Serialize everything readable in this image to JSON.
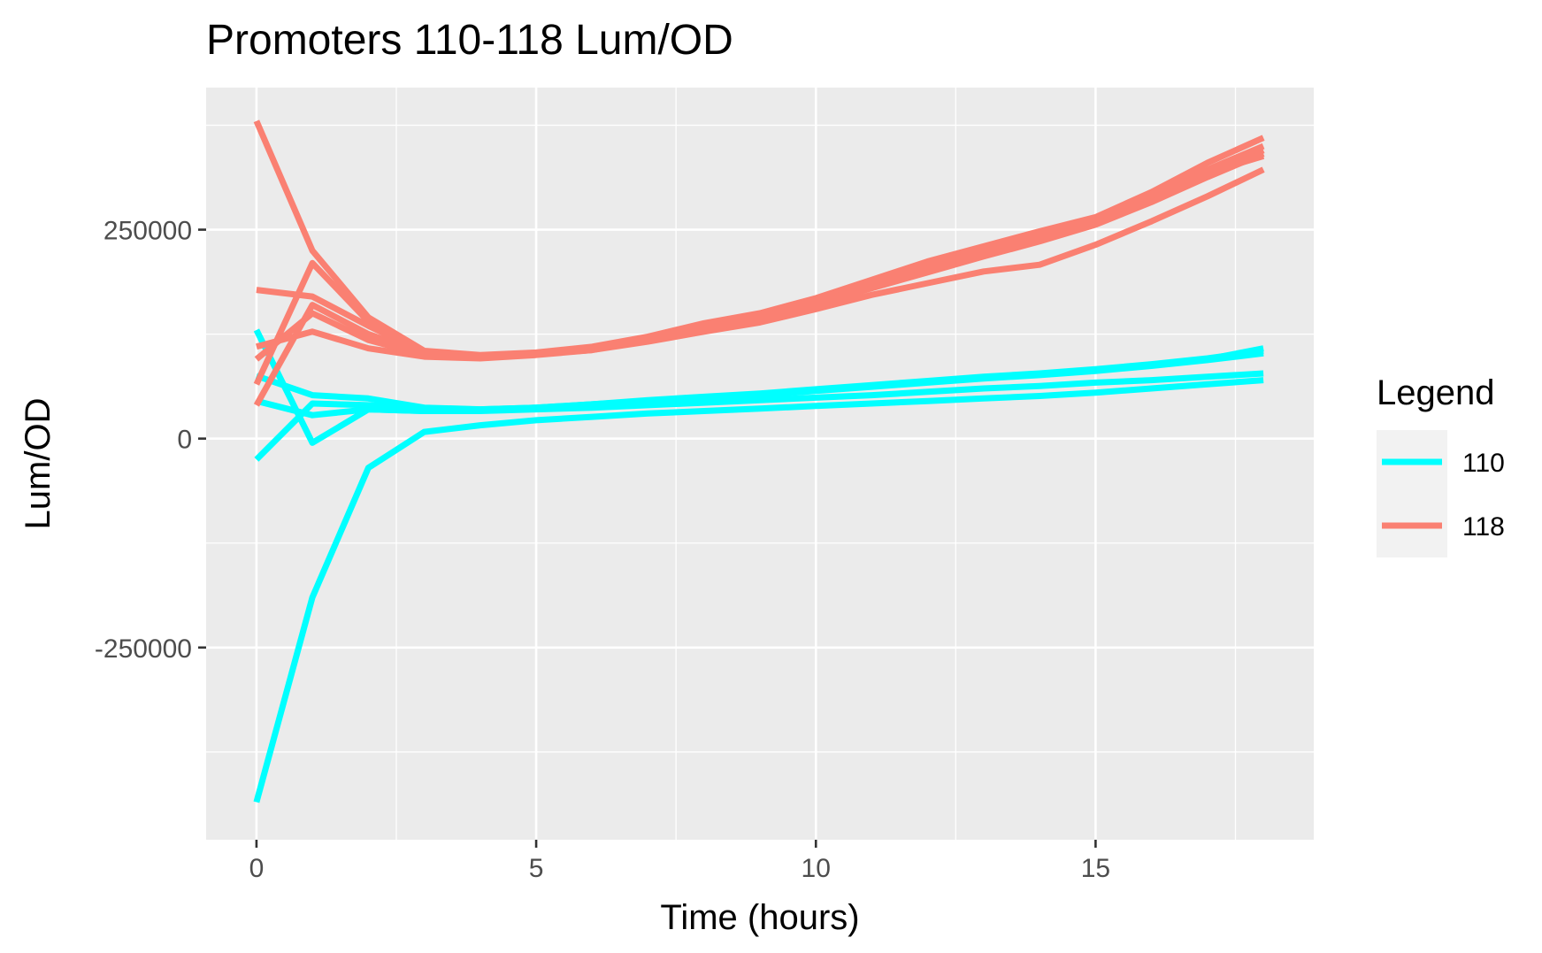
{
  "chart_data": {
    "type": "line",
    "title": "Promoters 110-118 Lum/OD",
    "xlabel": "Time (hours)",
    "ylabel": "Lum/OD",
    "xlim": [
      -0.9,
      18.9
    ],
    "ylim": [
      -480000,
      420000
    ],
    "x_ticks": [
      0,
      5,
      10,
      15
    ],
    "y_ticks": [
      -250000,
      0,
      250000
    ],
    "x_tick_labels": [
      "0",
      "5",
      "10",
      "15"
    ],
    "y_tick_labels": [
      "-250000",
      "0",
      "250000"
    ],
    "x_minor_gridlines": [
      2.5,
      7.5,
      12.5,
      17.5
    ],
    "y_minor_gridlines": [
      -375000,
      -125000,
      125000,
      375000
    ],
    "grid": true,
    "panel_background": "#ebebeb",
    "grid_color": "#ffffff",
    "legend": {
      "title": "Legend",
      "position": "right",
      "entries": [
        {
          "label": "110",
          "color": "#00ffff"
        },
        {
          "label": "118",
          "color": "#fa8072"
        }
      ]
    },
    "series": [
      {
        "group": "110",
        "color": "#00ffff",
        "x": [
          0,
          1,
          2,
          3,
          4,
          5,
          6,
          7,
          8,
          9,
          10,
          11,
          12,
          13,
          14,
          15,
          16,
          17,
          18
        ],
        "y": [
          -435000,
          -190000,
          -35000,
          8000,
          16000,
          22000,
          26000,
          30000,
          33000,
          36000,
          39000,
          42000,
          45000,
          48000,
          51000,
          55000,
          60000,
          65000,
          70000
        ]
      },
      {
        "group": "110",
        "color": "#00ffff",
        "x": [
          0,
          1,
          2,
          3,
          4,
          5,
          6,
          7,
          8,
          9,
          10,
          11,
          12,
          13,
          14,
          15,
          16,
          17,
          18
        ],
        "y": [
          130000,
          -5000,
          35000,
          33000,
          33000,
          35000,
          37000,
          40000,
          43000,
          46000,
          49000,
          52000,
          56000,
          60000,
          63000,
          67000,
          70000,
          74000,
          78000
        ]
      },
      {
        "group": "110",
        "color": "#00ffff",
        "x": [
          0,
          1,
          2,
          3,
          4,
          5,
          6,
          7,
          8,
          9,
          10,
          11,
          12,
          13,
          14,
          15,
          16,
          17,
          18
        ],
        "y": [
          75000,
          52000,
          48000,
          37000,
          35000,
          37000,
          40000,
          44000,
          48000,
          52000,
          57000,
          62000,
          67000,
          72000,
          76000,
          81000,
          87000,
          94000,
          102000
        ]
      },
      {
        "group": "110",
        "color": "#00ffff",
        "x": [
          0,
          1,
          2,
          3,
          4,
          5,
          6,
          7,
          8,
          9,
          10,
          11,
          12,
          13,
          14,
          15,
          16,
          17,
          18
        ],
        "y": [
          45000,
          28000,
          35000,
          33000,
          34000,
          37000,
          41000,
          46000,
          50000,
          54000,
          59000,
          64000,
          69000,
          74000,
          78000,
          83000,
          89000,
          96000,
          105000
        ]
      },
      {
        "group": "110",
        "color": "#00ffff",
        "x": [
          0,
          1,
          2,
          3,
          4,
          5,
          6,
          7,
          8,
          9,
          10,
          11,
          12,
          13,
          14,
          15,
          16,
          17,
          18
        ],
        "y": [
          -25000,
          42000,
          40000,
          36000,
          35000,
          37000,
          41000,
          45000,
          49000,
          53000,
          58000,
          63000,
          68000,
          73000,
          77000,
          82000,
          88000,
          95000,
          108000
        ]
      },
      {
        "group": "118",
        "color": "#fa8072",
        "x": [
          0,
          1,
          2,
          3,
          4,
          5,
          6,
          7,
          8,
          9,
          10,
          11,
          12,
          13,
          14,
          15,
          16,
          17,
          18
        ],
        "y": [
          380000,
          225000,
          145000,
          105000,
          100000,
          103000,
          110000,
          122000,
          138000,
          150000,
          168000,
          190000,
          212000,
          230000,
          248000,
          265000,
          295000,
          330000,
          360000
        ]
      },
      {
        "group": "118",
        "color": "#fa8072",
        "x": [
          0,
          1,
          2,
          3,
          4,
          5,
          6,
          7,
          8,
          9,
          10,
          11,
          12,
          13,
          14,
          15,
          16,
          17,
          18
        ],
        "y": [
          178000,
          170000,
          135000,
          103000,
          98000,
          101000,
          106000,
          116000,
          128000,
          139000,
          155000,
          172000,
          186000,
          200000,
          208000,
          232000,
          260000,
          290000,
          322000
        ]
      },
      {
        "group": "118",
        "color": "#fa8072",
        "x": [
          0,
          1,
          2,
          3,
          4,
          5,
          6,
          7,
          8,
          9,
          10,
          11,
          12,
          13,
          14,
          15,
          16,
          17,
          18
        ],
        "y": [
          110000,
          128000,
          108000,
          98000,
          96000,
          100000,
          106000,
          118000,
          132000,
          145000,
          162000,
          182000,
          202000,
          220000,
          238000,
          258000,
          285000,
          315000,
          345000
        ]
      },
      {
        "group": "118",
        "color": "#fa8072",
        "x": [
          0,
          1,
          2,
          3,
          4,
          5,
          6,
          7,
          8,
          9,
          10,
          11,
          12,
          13,
          14,
          15,
          16,
          17,
          18
        ],
        "y": [
          65000,
          210000,
          140000,
          100000,
          97000,
          101000,
          108000,
          120000,
          134000,
          148000,
          165000,
          186000,
          206000,
          224000,
          242000,
          262000,
          290000,
          322000,
          350000
        ]
      },
      {
        "group": "118",
        "color": "#fa8072",
        "x": [
          0,
          1,
          2,
          3,
          4,
          5,
          6,
          7,
          8,
          9,
          10,
          11,
          12,
          13,
          14,
          15,
          16,
          17,
          18
        ],
        "y": [
          40000,
          160000,
          125000,
          102000,
          98000,
          102000,
          108000,
          119000,
          133000,
          146000,
          163000,
          183000,
          203000,
          222000,
          240000,
          260000,
          288000,
          318000,
          338000
        ]
      },
      {
        "group": "118",
        "color": "#fa8072",
        "x": [
          0,
          1,
          2,
          3,
          4,
          5,
          6,
          7,
          8,
          9,
          10,
          11,
          12,
          13,
          14,
          15,
          16,
          17,
          18
        ],
        "y": [
          95000,
          150000,
          118000,
          100000,
          97000,
          101000,
          107000,
          118000,
          131000,
          144000,
          160000,
          180000,
          199000,
          218000,
          236000,
          256000,
          283000,
          313000,
          341000
        ]
      }
    ]
  }
}
